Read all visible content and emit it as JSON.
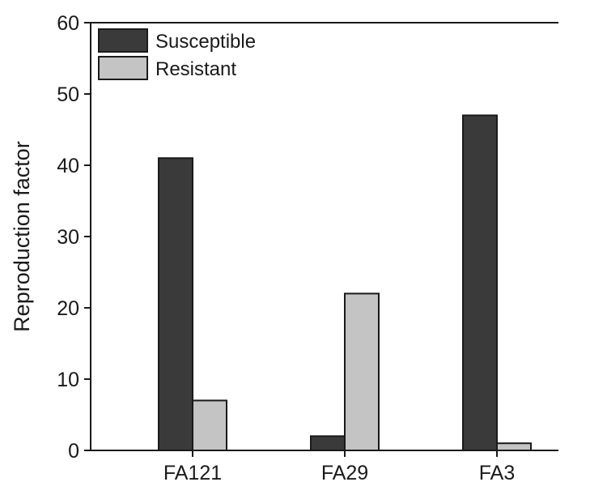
{
  "chart_data": {
    "type": "bar",
    "categories": [
      "FA121",
      "FA29",
      "FA3"
    ],
    "series": [
      {
        "name": "Susceptible",
        "values": [
          41,
          2,
          47
        ],
        "color": "#3a3a3a"
      },
      {
        "name": "Resistant",
        "values": [
          7,
          22,
          1
        ],
        "color": "#c4c4c4"
      }
    ],
    "ylabel": "Reproduction factor",
    "ylim": [
      0,
      60
    ],
    "yticks": [
      0,
      10,
      20,
      30,
      40,
      50,
      60
    ],
    "legend_position": "top-left",
    "grid": false
  }
}
